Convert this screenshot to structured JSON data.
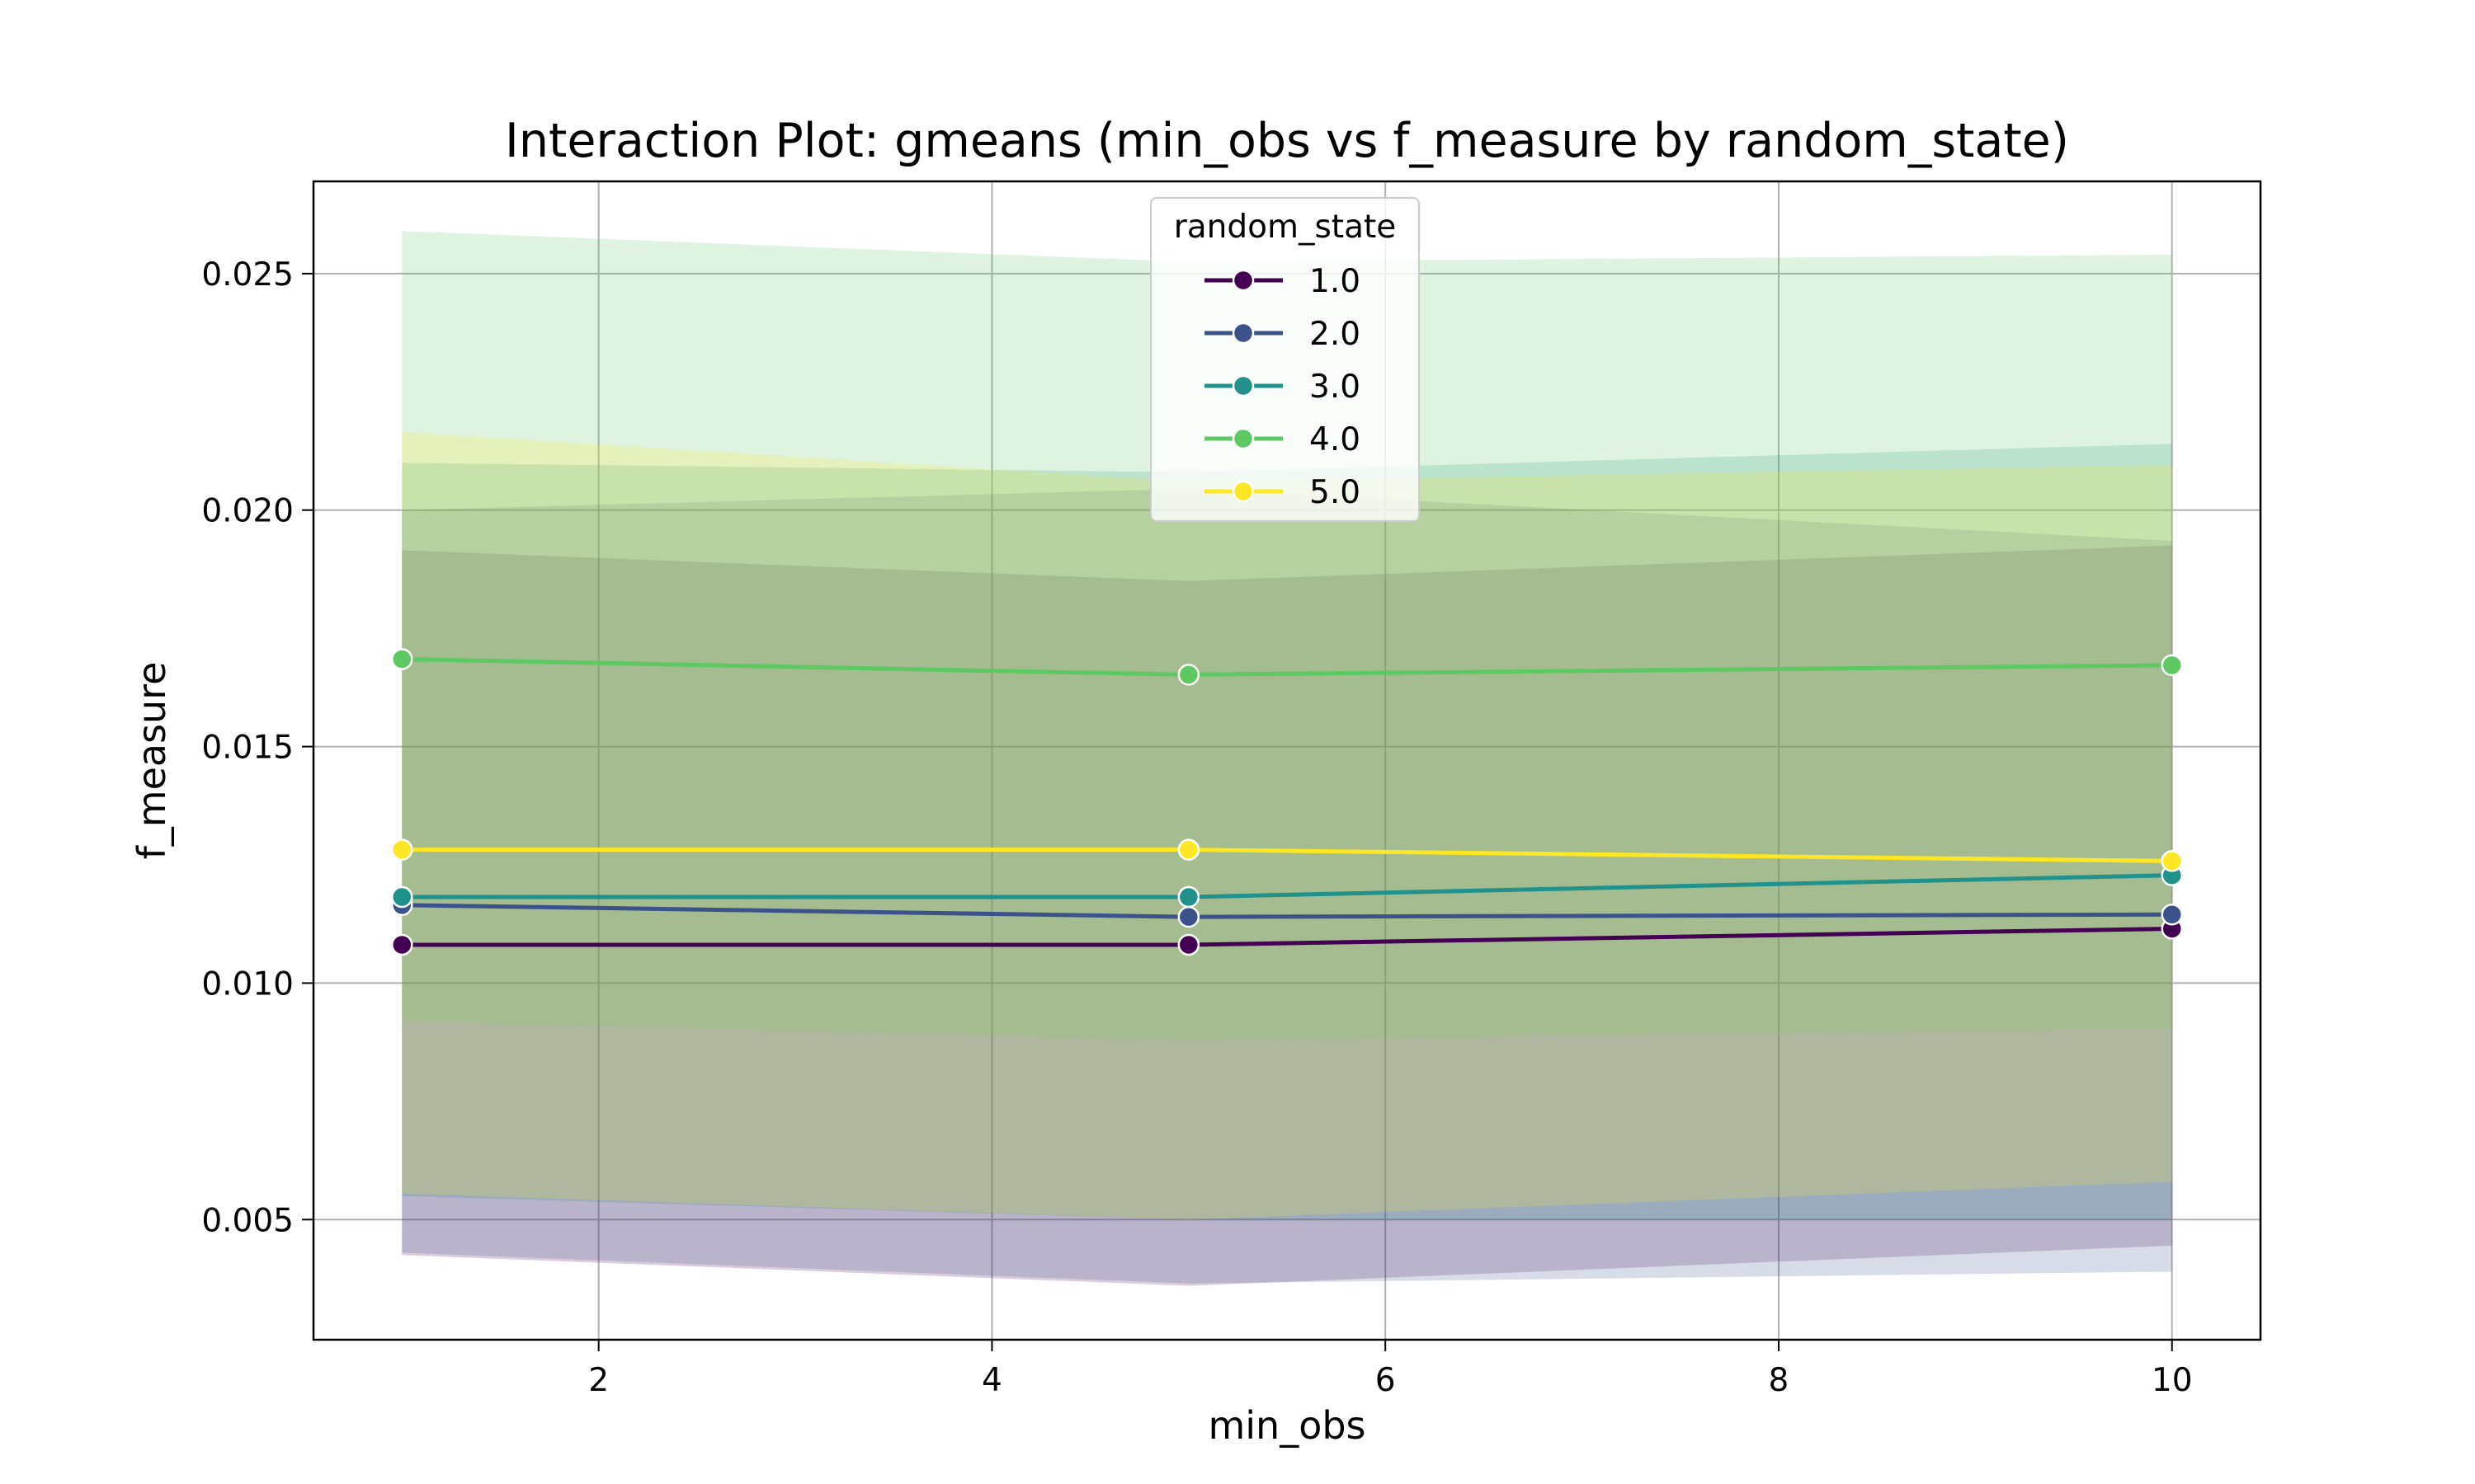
{
  "chart_data": {
    "type": "line",
    "title": "Interaction Plot: gmeans (min_obs vs f_measure by random_state)",
    "xlabel": "min_obs",
    "ylabel": "f_measure",
    "x": [
      1,
      5,
      10
    ],
    "xlim": [
      0.55,
      10.45
    ],
    "ylim": [
      0.00246,
      0.02695
    ],
    "xticks": [
      2,
      4,
      6,
      8,
      10
    ],
    "xtick_labels": [
      "2",
      "4",
      "6",
      "8",
      "10"
    ],
    "yticks": [
      0.005,
      0.01,
      0.015,
      0.02,
      0.025
    ],
    "ytick_labels": [
      "0.005",
      "0.010",
      "0.015",
      "0.020",
      "0.025"
    ],
    "grid": true,
    "legend": {
      "title": "random_state",
      "placement": "upper-center"
    },
    "series": [
      {
        "name": "1.0",
        "color": "#440154",
        "values": [
          0.01081,
          0.01081,
          0.01115
        ],
        "ci_low": [
          0.00425,
          0.0036,
          0.00445
        ],
        "ci_high": [
          0.01915,
          0.0185,
          0.01925
        ]
      },
      {
        "name": "2.0",
        "color": "#3b528b",
        "values": [
          0.01165,
          0.0114,
          0.01145
        ],
        "ci_low": [
          0.0043,
          0.00365,
          0.0039
        ],
        "ci_high": [
          0.02,
          0.02045,
          0.01935
        ]
      },
      {
        "name": "3.0",
        "color": "#21918c",
        "values": [
          0.01182,
          0.01182,
          0.01228
        ],
        "ci_low": [
          0.0055,
          0.005,
          0.005
        ],
        "ci_high": [
          0.021,
          0.0208,
          0.0214
        ]
      },
      {
        "name": "4.0",
        "color": "#5ec962",
        "values": [
          0.01685,
          0.01652,
          0.01672
        ],
        "ci_low": [
          0.0092,
          0.0088,
          0.00905
        ],
        "ci_high": [
          0.0259,
          0.02525,
          0.0254
        ]
      },
      {
        "name": "5.0",
        "color": "#fde725",
        "values": [
          0.01282,
          0.01282,
          0.01258
        ],
        "ci_low": [
          0.00555,
          0.005,
          0.0058
        ],
        "ci_high": [
          0.02165,
          0.0206,
          0.02095
        ]
      }
    ]
  }
}
